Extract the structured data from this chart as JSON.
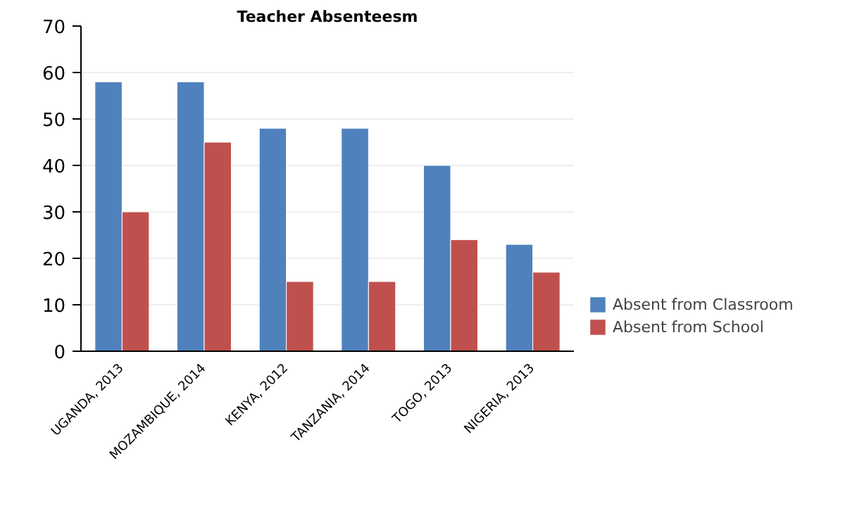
{
  "chart_data": {
    "type": "bar",
    "title": "Teacher Absenteesm",
    "categories": [
      "UGANDA, 2013",
      "MOZAMBIQUE, 2014",
      "KENYA, 2012",
      "TANZANIA, 2014",
      "TOGO, 2013",
      "NIGERIA, 2013"
    ],
    "series": [
      {
        "name": "Absent from Classroom",
        "color": "#4f81bd",
        "values": [
          58,
          58,
          48,
          48,
          40,
          23
        ]
      },
      {
        "name": "Absent from School",
        "color": "#c0504d",
        "values": [
          30,
          45,
          15,
          15,
          24,
          17
        ]
      }
    ],
    "ylim": [
      0,
      70
    ],
    "yticks": [
      0,
      10,
      20,
      30,
      40,
      50,
      60,
      70
    ],
    "grid": "y",
    "legend": "right"
  }
}
